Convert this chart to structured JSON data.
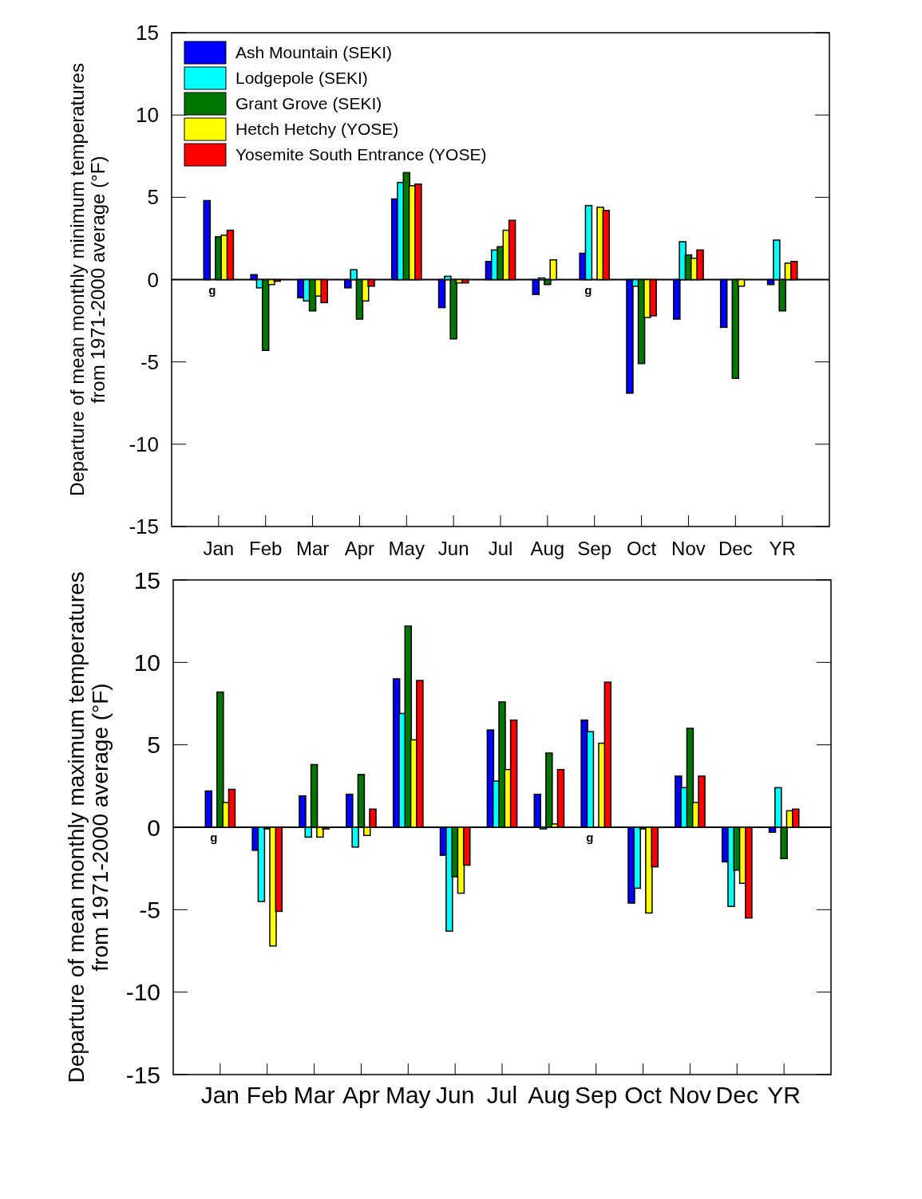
{
  "chart_data": [
    {
      "type": "bar",
      "ylabel": "Departure of mean monthly minimum temperatures\nfrom 1971-2000 average (°F)",
      "categories": [
        "Jan",
        "Feb",
        "Mar",
        "Apr",
        "May",
        "Jun",
        "Jul",
        "Aug",
        "Sep",
        "Oct",
        "Nov",
        "Dec",
        "YR"
      ],
      "ylim": [
        -15,
        15
      ],
      "yticks": [
        -15,
        -10,
        -5,
        0,
        5,
        10,
        15
      ],
      "legend": "top left",
      "ref_lines": [
        {
          "axis": "y",
          "value": 0
        }
      ],
      "series": [
        {
          "name": "Ash Mountain (SEKI)",
          "color": "#0000ff",
          "values": [
            4.8,
            0.3,
            -1.1,
            -0.5,
            4.9,
            -1.7,
            1.1,
            -0.9,
            1.6,
            -6.9,
            -2.4,
            -2.9,
            -0.3
          ]
        },
        {
          "name": "Lodgepole (SEKI)",
          "color": "#00ffff",
          "values": [
            null,
            -0.5,
            -1.3,
            0.6,
            5.9,
            0.2,
            1.8,
            0.1,
            4.5,
            -0.4,
            2.3,
            null,
            2.4
          ]
        },
        {
          "name": "Grant Grove (SEKI)",
          "color": "#007800",
          "values": [
            2.6,
            -4.3,
            -1.9,
            -2.4,
            6.5,
            -3.6,
            2.0,
            -0.3,
            null,
            -5.1,
            1.5,
            -6.0,
            -1.9
          ]
        },
        {
          "name": "Hetch Hetchy (YOSE)",
          "color": "#ffff00",
          "values": [
            2.7,
            -0.3,
            -1.0,
            -1.3,
            5.7,
            -0.2,
            3.0,
            1.2,
            4.4,
            -2.3,
            1.3,
            -0.4,
            1.0
          ]
        },
        {
          "name": "Yosemite South Entrance (YOSE)",
          "color": "#ff0000",
          "values": [
            3.0,
            -0.1,
            -1.4,
            -0.4,
            5.8,
            -0.2,
            3.6,
            null,
            4.2,
            -2.2,
            1.8,
            null,
            1.1
          ]
        }
      ],
      "annotations": [
        {
          "text": "g",
          "x": "Jan",
          "y": 0
        },
        {
          "text": "g",
          "x": "Sep",
          "y": 0
        }
      ]
    },
    {
      "type": "bar",
      "ylabel": "Departure of mean monthly maximum temperatures\nfrom 1971-2000 average (°F)",
      "categories": [
        "Jan",
        "Feb",
        "Mar",
        "Apr",
        "May",
        "Jun",
        "Jul",
        "Aug",
        "Sep",
        "Oct",
        "Nov",
        "Dec",
        "YR"
      ],
      "ylim": [
        -15,
        15
      ],
      "yticks": [
        -15,
        -10,
        -5,
        0,
        5,
        10,
        15
      ],
      "ref_lines": [
        {
          "axis": "y",
          "value": 0
        }
      ],
      "series": [
        {
          "color": "#0000ff",
          "values": [
            2.2,
            -1.4,
            1.9,
            2.0,
            9.0,
            -1.7,
            5.9,
            2.0,
            6.5,
            -4.6,
            3.1,
            -2.1,
            -0.3
          ]
        },
        {
          "color": "#00ffff",
          "values": [
            null,
            -4.5,
            -0.6,
            -1.2,
            6.9,
            -6.3,
            2.8,
            -0.1,
            5.8,
            -3.7,
            2.4,
            -4.8,
            2.4
          ]
        },
        {
          "color": "#007800",
          "values": [
            8.2,
            -0.1,
            3.8,
            3.2,
            12.2,
            -3.0,
            7.6,
            4.5,
            null,
            -0.1,
            6.0,
            -2.6,
            -1.9
          ]
        },
        {
          "color": "#ffff00",
          "values": [
            1.5,
            -7.2,
            -0.6,
            -0.5,
            5.3,
            -4.0,
            3.5,
            0.2,
            5.1,
            -5.2,
            1.5,
            -3.4,
            1.0
          ]
        },
        {
          "color": "#ff0000",
          "values": [
            2.3,
            -5.1,
            -0.1,
            1.1,
            8.9,
            -2.3,
            6.5,
            3.5,
            8.8,
            -2.4,
            3.1,
            -5.5,
            1.1
          ]
        }
      ],
      "annotations": [
        {
          "text": "g",
          "x": "Jan",
          "y": 0
        },
        {
          "text": "g",
          "x": "Sep",
          "y": 0
        }
      ]
    }
  ]
}
